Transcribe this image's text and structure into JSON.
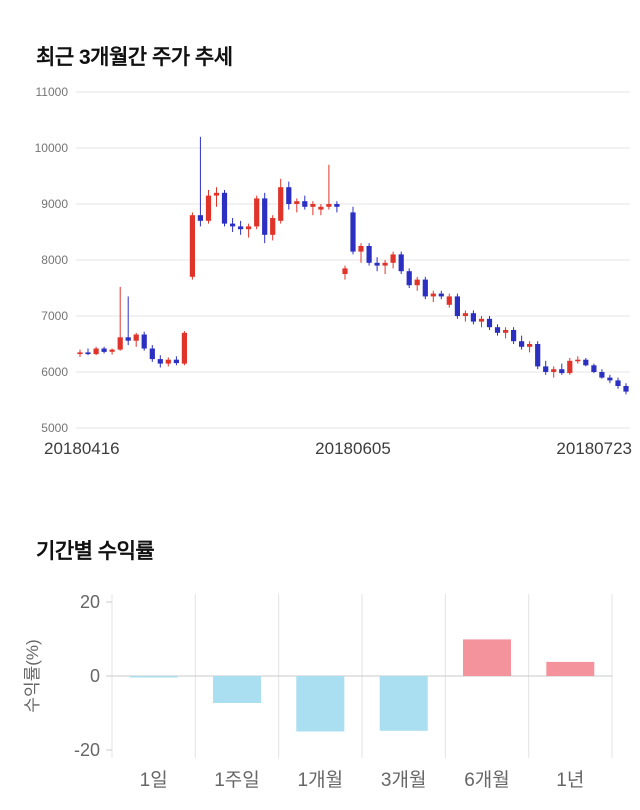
{
  "chart_data": [
    {
      "type": "candlestick",
      "title": "최근 3개월간 주가 추세",
      "ylim": [
        5000,
        11000
      ],
      "y_ticks": [
        5000,
        6000,
        7000,
        8000,
        9000,
        10000,
        11000
      ],
      "x_tick_labels": [
        "20180416",
        "20180605",
        "20180723"
      ],
      "grid": "horizontal",
      "legend": "none",
      "up_color": "#e0342b",
      "down_color": "#2b2fc2",
      "candles_ohlc": [
        [
          6320,
          6400,
          6270,
          6350
        ],
        [
          6350,
          6420,
          6300,
          6320
        ],
        [
          6320,
          6450,
          6300,
          6420
        ],
        [
          6420,
          6450,
          6330,
          6360
        ],
        [
          6360,
          6420,
          6310,
          6400
        ],
        [
          6400,
          7520,
          6380,
          6620
        ],
        [
          6620,
          7350,
          6480,
          6560
        ],
        [
          6560,
          6700,
          6450,
          6670
        ],
        [
          6670,
          6720,
          6380,
          6420
        ],
        [
          6420,
          6480,
          6180,
          6230
        ],
        [
          6230,
          6300,
          6080,
          6150
        ],
        [
          6150,
          6260,
          6100,
          6220
        ],
        [
          6220,
          6280,
          6120,
          6160
        ],
        [
          6150,
          6730,
          6120,
          6700
        ],
        [
          7700,
          8850,
          7650,
          8800
        ],
        [
          8800,
          10200,
          8600,
          8700
        ],
        [
          8700,
          9250,
          8650,
          9150
        ],
        [
          9150,
          9300,
          8950,
          9200
        ],
        [
          9200,
          9250,
          8600,
          8650
        ],
        [
          8650,
          8750,
          8500,
          8600
        ],
        [
          8600,
          8700,
          8450,
          8550
        ],
        [
          8550,
          8650,
          8400,
          8600
        ],
        [
          8600,
          9150,
          8550,
          9100
        ],
        [
          9100,
          9200,
          8300,
          8450
        ],
        [
          8450,
          8800,
          8350,
          8750
        ],
        [
          8700,
          9450,
          8650,
          9300
        ],
        [
          9300,
          9400,
          8900,
          9000
        ],
        [
          9000,
          9100,
          8850,
          9050
        ],
        [
          9050,
          9150,
          8900,
          8950
        ],
        [
          8950,
          9050,
          8800,
          9000
        ],
        [
          8900,
          9000,
          8800,
          8950
        ],
        [
          8950,
          9700,
          8900,
          9000
        ],
        [
          9000,
          9050,
          8850,
          8950
        ],
        [
          7750,
          7900,
          7650,
          7850
        ],
        [
          8850,
          8950,
          8100,
          8150
        ],
        [
          8150,
          8300,
          7950,
          8250
        ],
        [
          8250,
          8300,
          7900,
          7950
        ],
        [
          7950,
          8050,
          7800,
          7900
        ],
        [
          7900,
          8000,
          7750,
          7950
        ],
        [
          7950,
          8150,
          7850,
          8100
        ],
        [
          8100,
          8150,
          7750,
          7800
        ],
        [
          7800,
          7850,
          7500,
          7550
        ],
        [
          7550,
          7700,
          7450,
          7650
        ],
        [
          7650,
          7700,
          7300,
          7350
        ],
        [
          7350,
          7450,
          7250,
          7400
        ],
        [
          7400,
          7450,
          7300,
          7350
        ],
        [
          7200,
          7400,
          7150,
          7350
        ],
        [
          7350,
          7400,
          6950,
          7000
        ],
        [
          7000,
          7100,
          6900,
          7050
        ],
        [
          7050,
          7100,
          6850,
          6900
        ],
        [
          6900,
          7000,
          6800,
          6950
        ],
        [
          6950,
          7000,
          6750,
          6800
        ],
        [
          6800,
          6850,
          6650,
          6700
        ],
        [
          6700,
          6800,
          6600,
          6750
        ],
        [
          6750,
          6800,
          6500,
          6550
        ],
        [
          6550,
          6650,
          6400,
          6450
        ],
        [
          6450,
          6550,
          6350,
          6500
        ],
        [
          6500,
          6550,
          6050,
          6100
        ],
        [
          6100,
          6200,
          5950,
          6000
        ],
        [
          6000,
          6100,
          5900,
          6050
        ],
        [
          6050,
          6150,
          5950,
          5980
        ],
        [
          5980,
          6250,
          5950,
          6200
        ],
        [
          6200,
          6280,
          6150,
          6220
        ],
        [
          6220,
          6250,
          6100,
          6120
        ],
        [
          6120,
          6150,
          5980,
          6000
        ],
        [
          6000,
          6050,
          5880,
          5900
        ],
        [
          5900,
          5950,
          5800,
          5850
        ],
        [
          5850,
          5900,
          5700,
          5750
        ],
        [
          5750,
          5800,
          5600,
          5650
        ]
      ]
    },
    {
      "type": "bar",
      "title": "기간별 수익률",
      "ylabel": "수익률(%)",
      "ylim": [
        -20,
        20
      ],
      "y_ticks": [
        20,
        0,
        -20
      ],
      "categories": [
        "1일",
        "1주일",
        "1개월",
        "3개월",
        "6개월",
        "1년"
      ],
      "values": [
        -0.4,
        -7.3,
        -15.0,
        -14.8,
        9.9,
        3.8
      ],
      "grid": "vertical",
      "legend": "none",
      "positive_color": "#f4939c",
      "negative_color": "#a9dff1"
    }
  ]
}
